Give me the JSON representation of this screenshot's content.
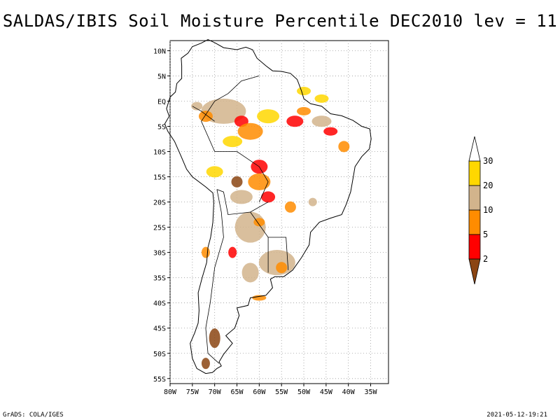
{
  "title": "SALDAS/IBIS Soil Moisture Percentile DEC2010 lev = 11",
  "footer": {
    "left": "GrADS: COLA/IGES",
    "right": "2021-05-12-19:21"
  },
  "map": {
    "region": "South America",
    "lon_range": [
      -80,
      -31
    ],
    "lat_range": [
      -56,
      12
    ],
    "grid": true,
    "lat_labels": [
      "10N",
      "5N",
      "EQ",
      "5S",
      "10S",
      "15S",
      "20S",
      "25S",
      "30S",
      "35S",
      "40S",
      "45S",
      "50S",
      "55S"
    ],
    "lat_values": [
      10,
      5,
      0,
      -5,
      -10,
      -15,
      -20,
      -25,
      -30,
      -35,
      -40,
      -45,
      -50,
      -55
    ],
    "lon_labels": [
      "80W",
      "75W",
      "70W",
      "65W",
      "60W",
      "55W",
      "50W",
      "45W",
      "40W",
      "35W"
    ],
    "lon_values": [
      -80,
      -75,
      -70,
      -65,
      -60,
      -55,
      -50,
      -45,
      -40,
      -35
    ]
  },
  "legend": {
    "labels": [
      "2",
      "5",
      "10",
      "20",
      "30"
    ],
    "colors": [
      "#8b4513",
      "#ff0000",
      "#ff8c00",
      "#d2b48c",
      "#ffd700",
      "#ffffff"
    ]
  },
  "colors": {
    "dry_extreme": "#8b4513",
    "very_dry": "#ff0000",
    "dry": "#ff8c00",
    "moderate": "#d2b48c",
    "slightly_dry": "#ffd700"
  }
}
